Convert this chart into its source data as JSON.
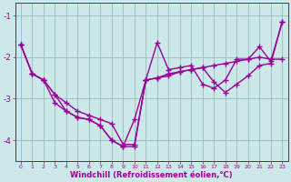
{
  "x": [
    0,
    1,
    2,
    3,
    4,
    5,
    6,
    7,
    8,
    9,
    10,
    11,
    12,
    13,
    14,
    15,
    16,
    17,
    18,
    19,
    20,
    21,
    22,
    23
  ],
  "line1": [
    -1.7,
    -2.4,
    -2.55,
    -2.9,
    -3.1,
    -3.3,
    -3.4,
    -3.5,
    -3.6,
    -4.1,
    -4.1,
    -2.55,
    -2.5,
    -2.4,
    -2.35,
    -2.3,
    -2.25,
    -2.2,
    -2.15,
    -2.1,
    -2.05,
    -2.0,
    -2.05,
    -2.05
  ],
  "line2": [
    -1.7,
    -2.4,
    -2.55,
    -3.1,
    -3.3,
    -3.45,
    -3.5,
    -3.65,
    -4.0,
    -4.15,
    -4.15,
    -2.55,
    -1.65,
    -2.3,
    -2.25,
    -2.2,
    -2.65,
    -2.75,
    -2.55,
    -2.05,
    -2.05,
    -1.75,
    -2.1,
    -1.15
  ],
  "line3": [
    -1.7,
    -2.4,
    -2.55,
    -2.9,
    -3.3,
    -3.45,
    -3.5,
    -3.65,
    -4.0,
    -4.15,
    -3.5,
    -2.55,
    -2.5,
    -2.45,
    -2.35,
    -2.3,
    -2.25,
    -2.6,
    -2.85,
    -2.65,
    -2.45,
    -2.2,
    -2.15,
    -1.15
  ],
  "bg_color": "#cce8e8",
  "line_color": "#990099",
  "grid_color": "#99bbbb",
  "xlabel": "Windchill (Refroidissement éolien,°C)",
  "xlim_min": -0.5,
  "xlim_max": 23.5,
  "ylim_min": -4.5,
  "ylim_max": -0.7,
  "yticks": [
    -4,
    -3,
    -2,
    -1
  ],
  "xticks": [
    0,
    1,
    2,
    3,
    4,
    5,
    6,
    7,
    8,
    9,
    10,
    11,
    12,
    13,
    14,
    15,
    16,
    17,
    18,
    19,
    20,
    21,
    22,
    23
  ],
  "marker": "+",
  "markersize": 4,
  "linewidth": 1.0
}
